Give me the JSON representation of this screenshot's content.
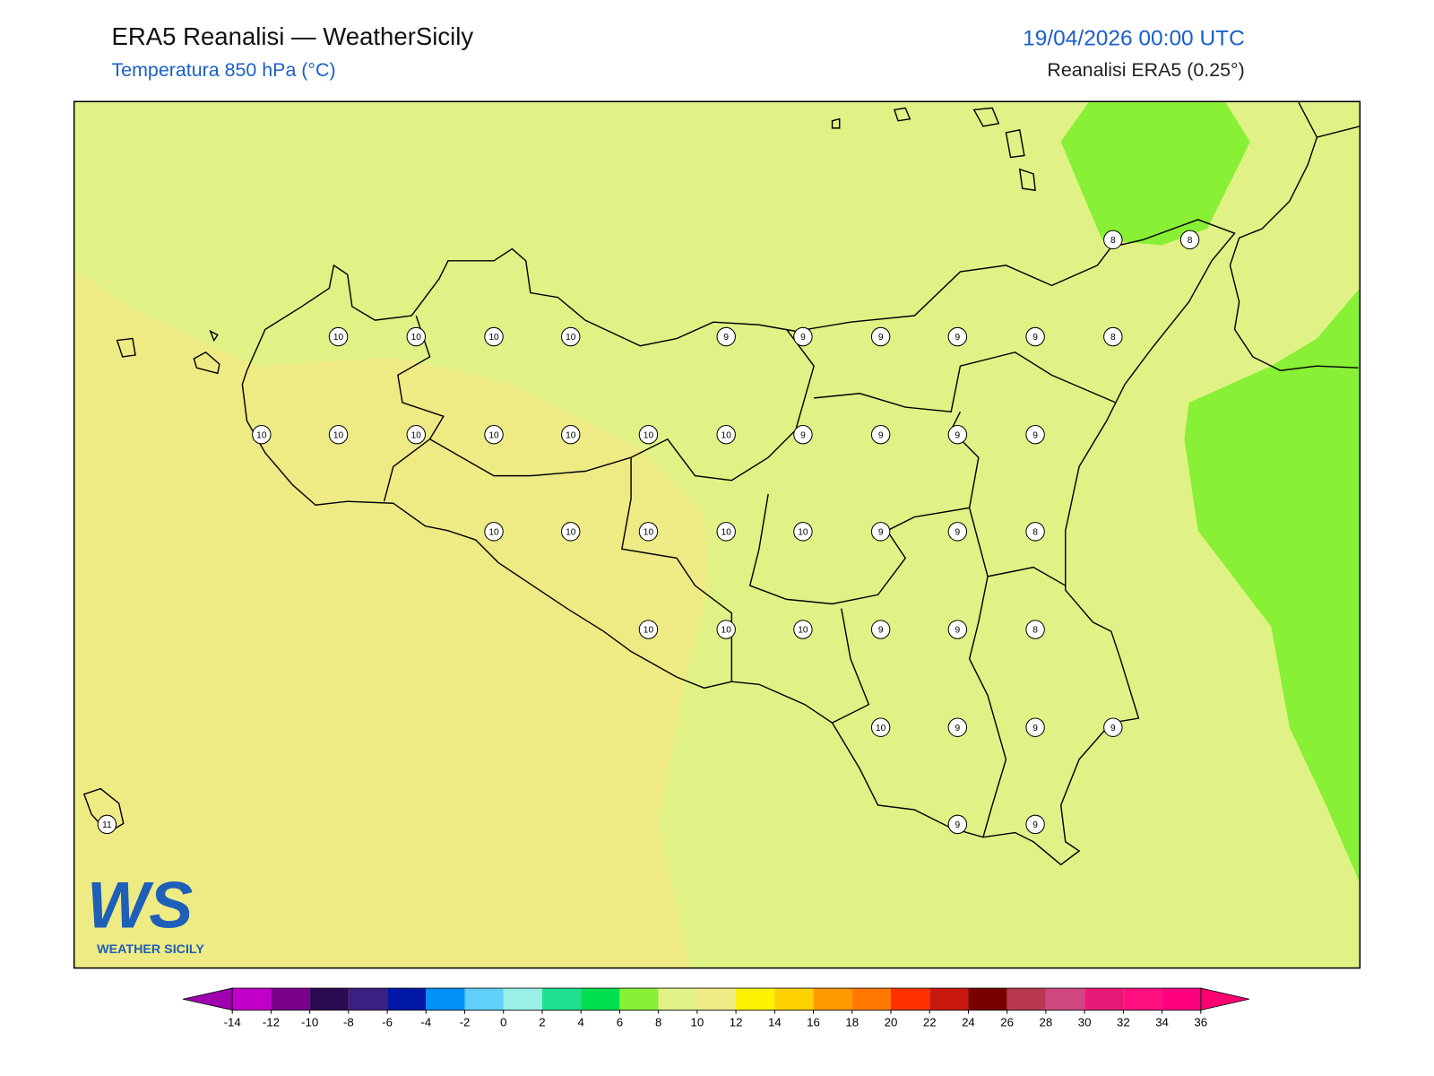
{
  "header": {
    "title": "ERA5 Reanalisi — WeatherSicily",
    "subtitle": "Temperatura 850 hPa (°C)",
    "datetime": "19/04/2026 00:00 UTC",
    "source": "Reanalisi ERA5 (0.25°)"
  },
  "points": [
    8,
    8,
    10,
    10,
    10,
    10,
    9,
    9,
    9,
    9,
    9,
    8,
    10,
    10,
    10,
    10,
    10,
    10,
    10,
    9,
    9,
    9,
    9,
    10,
    10,
    10,
    10,
    10,
    9,
    9,
    8,
    10,
    10,
    10,
    9,
    9,
    8,
    10,
    9,
    9,
    9,
    9,
    9,
    11
  ],
  "colorbar": {
    "ticks": [
      -14,
      -12,
      -10,
      -8,
      -6,
      -4,
      -2,
      0,
      2,
      4,
      6,
      8,
      10,
      12,
      14,
      16,
      18,
      20,
      22,
      24,
      26,
      28,
      30,
      32,
      34,
      36
    ],
    "colors": [
      "#c000c8",
      "#7a008a",
      "#2a0a50",
      "#3a2080",
      "#0018a8",
      "#0090f8",
      "#60d0f8",
      "#98f0e8",
      "#20e090",
      "#00e050",
      "#88f035",
      "#e0f285",
      "#eeeb85",
      "#fff200",
      "#ffd200",
      "#ff9a00",
      "#ff7800",
      "#ff3000",
      "#c81810",
      "#780000",
      "#b83850",
      "#d04880",
      "#e81878",
      "#ff1080",
      "#ff0080"
    ],
    "under": "#a000b0",
    "over": "#ff0070"
  },
  "logo": {
    "mark": "WS",
    "text": "WEATHER SICILY"
  }
}
